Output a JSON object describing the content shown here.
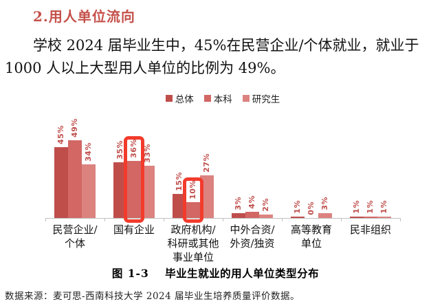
{
  "page": {
    "heading": "2.用人单位流向",
    "paragraph_line1": "学校 2024 届毕业生中，45%在民营企业/个体就业，就业于",
    "paragraph_line2": "1000 人以上大型用人单位的比例为 49%。",
    "caption_prefix": "图 1-3",
    "caption_title": "毕业生就业的用人单位类型分布",
    "footer": "数据来源：麦可思-西南科技大学 2024 届毕业生培养质量评价数据。"
  },
  "chart_data": {
    "type": "bar",
    "title": "毕业生就业的用人单位类型分布",
    "categories": [
      "民营企业/\n个体",
      "国有企业",
      "政府机构/\n科研或其他\n事业单位",
      "中外合资/\n外资/独资",
      "高等教育\n单位",
      "民非组织"
    ],
    "series": [
      {
        "name": "总体",
        "color": "#bf4e4b",
        "values": [
          45,
          35,
          15,
          3,
          1,
          1
        ]
      },
      {
        "name": "本科",
        "color": "#d26764",
        "values": [
          49,
          36,
          10,
          4,
          0,
          1
        ]
      },
      {
        "name": "研究生",
        "color": "#dc8380",
        "values": [
          34,
          33,
          27,
          2,
          3,
          1
        ]
      }
    ],
    "value_suffix": "%",
    "ylim": [
      0,
      52
    ],
    "grid": false,
    "legend_position": "top",
    "label_color": "#c0504d",
    "axis_color": "#c0c0c0",
    "highlight_color": "#f23b2c",
    "highlights": [
      {
        "category_index": 1,
        "series_index": 1,
        "value": "36%"
      },
      {
        "category_index": 2,
        "series_index": 1,
        "value": "10%"
      }
    ]
  }
}
